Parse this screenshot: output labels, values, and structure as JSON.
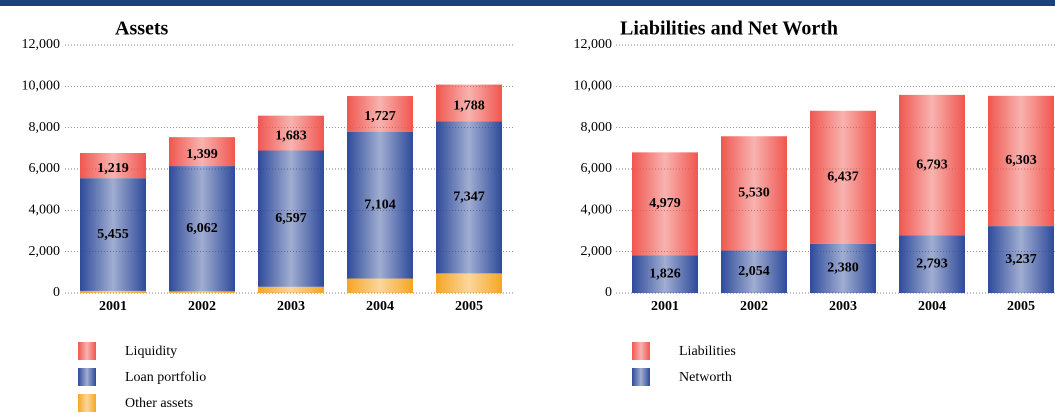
{
  "chart_data": [
    {
      "type": "stacked_bar",
      "title": "Assets",
      "categories": [
        "2001",
        "2002",
        "2003",
        "2004",
        "2005"
      ],
      "series": [
        {
          "name": "Other assets",
          "color": "#f5a623",
          "values": [
            100,
            80,
            300,
            700,
            950
          ]
        },
        {
          "name": "Loan portfolio",
          "color": "#2e4a9a",
          "values": [
            5455,
            6062,
            6597,
            7104,
            7347
          ],
          "value_labels": [
            "5,455",
            "6,062",
            "6,597",
            "7,104",
            "7,347"
          ]
        },
        {
          "name": "Liquidity",
          "color": "#f0564f",
          "values": [
            1219,
            1399,
            1683,
            1727,
            1788
          ],
          "value_labels": [
            "1,219",
            "1,399",
            "1,683",
            "1,727",
            "1,788"
          ]
        }
      ],
      "legend_order": [
        "Liquidity",
        "Loan portfolio",
        "Other assets"
      ],
      "ylim": [
        0,
        12000
      ],
      "yticks": [
        0,
        {
          "value": 2000,
          "label": "2,000"
        },
        {
          "value": 4000,
          "label": "4,000"
        },
        {
          "value": 6000,
          "label": "6,000"
        },
        {
          "value": 8000,
          "label": "8,000"
        },
        {
          "value": 10000,
          "label": "10,000"
        },
        {
          "value": 12000,
          "label": "12,000"
        }
      ],
      "grid": true
    },
    {
      "type": "stacked_bar",
      "title": "Liabilities and Net Worth",
      "categories": [
        "2001",
        "2002",
        "2003",
        "2004",
        "2005"
      ],
      "series": [
        {
          "name": "Networth",
          "color": "#2e4a9a",
          "values": [
            1826,
            2054,
            2380,
            2793,
            3237
          ],
          "value_labels": [
            "1,826",
            "2,054",
            "2,380",
            "2,793",
            "3,237"
          ]
        },
        {
          "name": "Liabilities",
          "color": "#f0564f",
          "values": [
            4979,
            5530,
            6437,
            6793,
            6303
          ],
          "value_labels": [
            "4,979",
            "5,530",
            "6,437",
            "6,793",
            "6,303"
          ]
        }
      ],
      "legend_order": [
        "Liabilities",
        "Networth"
      ],
      "ylim": [
        0,
        12000
      ],
      "yticks": [
        0,
        {
          "value": 2000,
          "label": "2,000"
        },
        {
          "value": 4000,
          "label": "4,000"
        },
        {
          "value": 6000,
          "label": "6,000"
        },
        {
          "value": 8000,
          "label": "8,000"
        },
        {
          "value": 10000,
          "label": "10,000"
        },
        {
          "value": 12000,
          "label": "12,000"
        }
      ],
      "grid": true
    }
  ]
}
